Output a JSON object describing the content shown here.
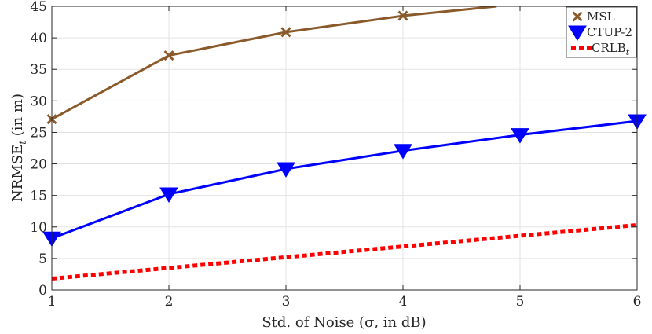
{
  "chart_data": {
    "type": "line",
    "title": "",
    "xlabel": "Std. of Noise (σ, in dB)",
    "ylabel": {
      "base": "NRMSE",
      "sub": "t",
      "tail": " (in m)"
    },
    "x": [
      1,
      2,
      3,
      4,
      5,
      6
    ],
    "xlim": [
      1,
      6
    ],
    "ylim": [
      0,
      45
    ],
    "xticks": [
      1,
      2,
      3,
      4,
      5,
      6
    ],
    "yticks": [
      0,
      5,
      10,
      15,
      20,
      25,
      30,
      35,
      40,
      45
    ],
    "grid": true,
    "legend_position": "top-right",
    "series": [
      {
        "name": "MSL",
        "name_sub": "",
        "color": "#8B5A2B",
        "marker": "x",
        "line": "solid",
        "x": [
          1,
          2,
          3,
          4,
          4.8
        ],
        "values": [
          27.1,
          37.2,
          40.9,
          43.5,
          45
        ]
      },
      {
        "name": "CTUP-2",
        "name_sub": "",
        "color": "#0000FF",
        "marker": "triangle-down",
        "line": "solid",
        "x": [
          1,
          2,
          3,
          4,
          5,
          6
        ],
        "values": [
          8.2,
          15.2,
          19.2,
          22.1,
          24.6,
          26.8
        ]
      },
      {
        "name": "CRLB",
        "name_sub": "t",
        "color": "#FF0000",
        "marker": "none",
        "line": "dotted",
        "x": [
          1,
          2,
          3,
          4,
          5,
          6
        ],
        "values": [
          1.8,
          3.5,
          5.2,
          6.9,
          8.6,
          10.3
        ]
      }
    ]
  }
}
